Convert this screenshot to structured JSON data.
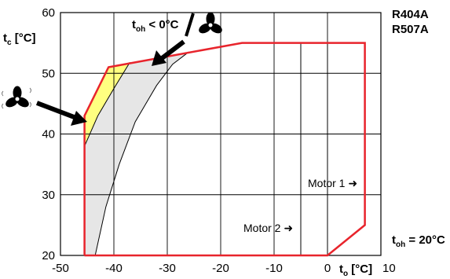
{
  "chart_data": {
    "type": "line",
    "xlim": [
      -50,
      10
    ],
    "ylim": [
      20,
      60
    ],
    "x_ticks": [
      "-50",
      "-40",
      "-30",
      "-20",
      "-10",
      "0",
      "10"
    ],
    "y_ticks": [
      "20",
      "30",
      "40",
      "50",
      "60"
    ],
    "ylabel": {
      "main": "t",
      "sub": "c",
      "unit": " [°C]"
    },
    "xlabel": {
      "main": "t",
      "sub": "o",
      "unit": " [°C]"
    },
    "refrigerants": [
      "R404A",
      "R507A"
    ],
    "toh_label": {
      "main": "t",
      "sub": "oh",
      "value": " = 20°C"
    },
    "fan_note": {
      "main": "t",
      "sub": "oh",
      "value": " < 0°C"
    },
    "motor1_label": "Motor 1 ➜",
    "motor2_label": "Motor 2 ➜",
    "grid": true,
    "colors": {
      "envelope": "#e8242c",
      "yellow_zone": "#ffff80",
      "grey_zone": "#e6e6e6",
      "grid": "#000000"
    },
    "envelope": [
      [
        -45.5,
        20
      ],
      [
        -45.5,
        43
      ],
      [
        -41,
        51
      ],
      [
        -16,
        55
      ],
      [
        7,
        55
      ],
      [
        7,
        25
      ],
      [
        0,
        20
      ],
      [
        -45.5,
        20
      ]
    ],
    "curve_yellow_right": [
      [
        -45.5,
        38
      ],
      [
        -43,
        43
      ],
      [
        -40,
        47.5
      ],
      [
        -37,
        51.8
      ]
    ],
    "curve_grey_right": [
      [
        -43.5,
        20
      ],
      [
        -41.5,
        28
      ],
      [
        -39,
        35
      ],
      [
        -36,
        42
      ],
      [
        -32,
        48
      ],
      [
        -29,
        51.5
      ],
      [
        -26,
        53.5
      ]
    ],
    "motor_boundaries": [
      -5,
      0
    ]
  }
}
